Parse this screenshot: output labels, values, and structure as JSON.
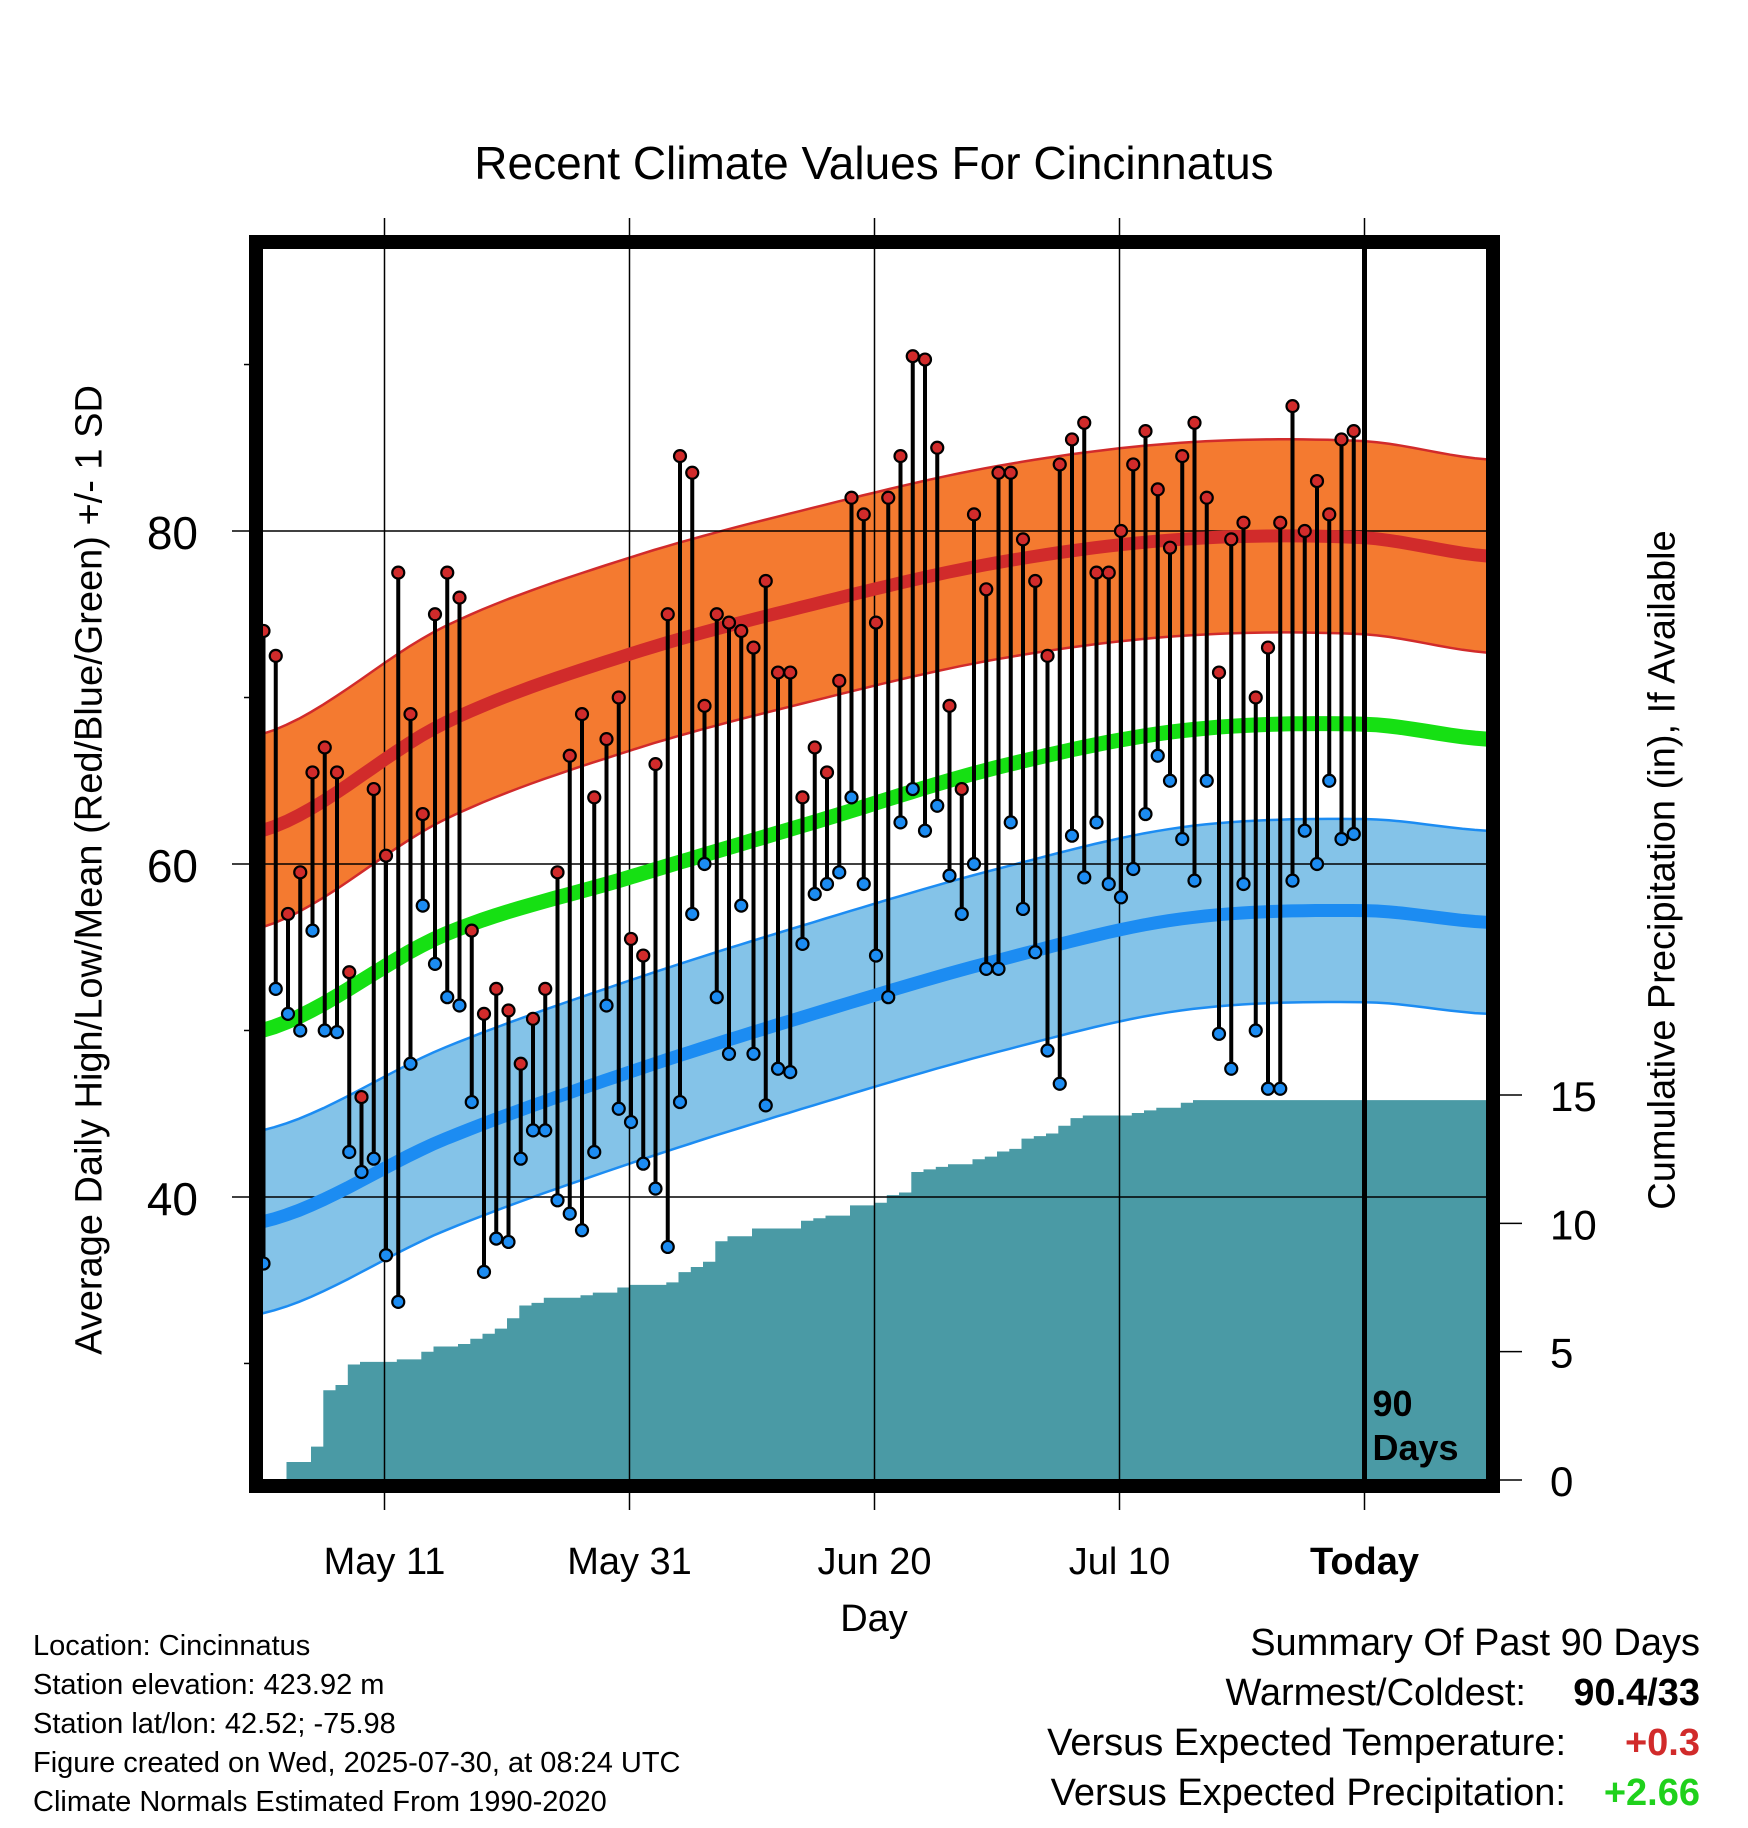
{
  "colors": {
    "high_band": "#f47a30",
    "high_line": "#d12b2b",
    "low_band": "#84c3e8",
    "low_line": "#1c8cf2",
    "mean_line": "#16e013",
    "precip_fill": "#4a9aa5",
    "high_dot": "#d12b2b",
    "low_dot": "#1c8cf2",
    "warm_value": "#d12b2b",
    "precip_value": "#1fd11c"
  },
  "chart_data": {
    "type": "line",
    "title": "Recent Climate Values For Cincinnatus",
    "xlabel": "Day",
    "ylabel_left": "Average Daily High/Low/Mean (Red/Blue/Green) +/- 1 SD",
    "ylabel_right": "Cumulative Precipitation (in), If Available",
    "x_ticks": [
      "May 11",
      "May 31",
      "Jun 20",
      "Jul 10",
      "Today"
    ],
    "x_range_days": [
      -90,
      10
    ],
    "x_tick_days": [
      -80,
      -60,
      -40,
      -20,
      0
    ],
    "y_left_range": [
      23,
      97
    ],
    "y_left_ticks": [
      40,
      60,
      80
    ],
    "y_left_minor_ticks": [
      30,
      50,
      70,
      90
    ],
    "y_right_range": [
      0,
      48
    ],
    "y_right_ticks": [
      0,
      5,
      10,
      15
    ],
    "today_marker_label": [
      "90",
      "Days"
    ],
    "normals": {
      "day": [
        -90,
        -75,
        -60,
        -45,
        -30,
        -15,
        0,
        10
      ],
      "mean_high": [
        62,
        68.5,
        72.6,
        75.6,
        78.1,
        79.5,
        79.6,
        78.5
      ],
      "high_sd": [
        5.8,
        5.8,
        5.8,
        5.8,
        5.8,
        5.8,
        5.8,
        5.8
      ],
      "mean": [
        50,
        55.8,
        59.2,
        62.5,
        65.8,
        68.0,
        68.4,
        67.5
      ],
      "mean_low": [
        38.5,
        43.5,
        47.5,
        51.0,
        54.2,
        56.7,
        57.2,
        56.5
      ],
      "low_sd": [
        5.5,
        5.5,
        5.5,
        5.5,
        5.5,
        5.5,
        5.5,
        5.5
      ]
    },
    "daily": {
      "day": [
        -90,
        -89,
        -88,
        -87,
        -86,
        -85,
        -84,
        -83,
        -82,
        -81,
        -80,
        -79,
        -78,
        -77,
        -76,
        -75,
        -74,
        -73,
        -72,
        -71,
        -70,
        -69,
        -68,
        -67,
        -66,
        -65,
        -64,
        -63,
        -62,
        -61,
        -60,
        -59,
        -58,
        -57,
        -56,
        -55,
        -54,
        -53,
        -52,
        -51,
        -50,
        -49,
        -48,
        -47,
        -46,
        -45,
        -44,
        -43,
        -42,
        -41,
        -40,
        -39,
        -38,
        -37,
        -36,
        -35,
        -34,
        -33,
        -32,
        -31,
        -30,
        -29,
        -28,
        -27,
        -26,
        -25,
        -24,
        -23,
        -22,
        -21,
        -20,
        -19,
        -18,
        -17,
        -16,
        -15,
        -14,
        -13,
        -12,
        -11,
        -10,
        -9,
        -8,
        -7,
        -6,
        -5,
        -4,
        -3,
        -2,
        -1
      ],
      "high": [
        74,
        72.5,
        57,
        59.5,
        65.5,
        67,
        65.5,
        53.5,
        46,
        64.5,
        60.5,
        77.5,
        69,
        63,
        75,
        77.5,
        76,
        56,
        51,
        52.5,
        51.2,
        48,
        50.7,
        52.5,
        59.5,
        66.5,
        69,
        64,
        67.5,
        70,
        55.5,
        54.5,
        66,
        75,
        84.5,
        83.5,
        69.5,
        75,
        74.5,
        74,
        73,
        77,
        71.5,
        71.5,
        64,
        67,
        65.5,
        71,
        82,
        81,
        74.5,
        82,
        84.5,
        90.5,
        90.3,
        85,
        69.5,
        64.5,
        81,
        76.5,
        83.5,
        83.5,
        79.5,
        77,
        72.5,
        84,
        85.5,
        86.5,
        77.5,
        77.5,
        80,
        84,
        86,
        82.5,
        79,
        84.5,
        86.5,
        82,
        71.5,
        79.5,
        80.5,
        70,
        73,
        80.5,
        87.5,
        80,
        83,
        81,
        85.5,
        86
      ],
      "low": [
        36,
        52.5,
        51,
        50,
        56,
        50,
        49.9,
        42.7,
        41.5,
        42.3,
        36.5,
        33.7,
        48,
        57.5,
        54,
        52,
        51.5,
        45.7,
        35.5,
        37.5,
        37.3,
        42.3,
        44,
        44,
        39.8,
        39,
        38,
        42.7,
        51.5,
        45.3,
        44.5,
        42,
        40.5,
        37,
        45.7,
        57,
        60,
        52,
        48.6,
        57.5,
        48.6,
        45.5,
        47.7,
        47.5,
        55.2,
        58.2,
        58.8,
        59.5,
        64,
        58.8,
        54.5,
        52,
        62.5,
        64.5,
        62,
        63.5,
        59.3,
        57,
        60,
        53.7,
        53.7,
        62.5,
        57.3,
        54.7,
        48.8,
        46.8,
        61.7,
        59.2,
        62.5,
        58.8,
        58,
        59.7,
        63,
        66.5,
        65,
        61.5,
        59,
        65,
        49.8,
        47.7,
        58.8,
        50,
        46.5,
        46.5,
        59,
        62,
        60,
        65,
        61.5,
        61.8
      ]
    },
    "precip": {
      "day": [
        -89.5,
        -88,
        -86,
        -85,
        -84,
        -83,
        -82,
        -81,
        -80,
        -79,
        -78,
        -77,
        -76,
        -75,
        -74,
        -73,
        -72,
        -71,
        -70,
        -69,
        -68,
        -67,
        -66,
        -65,
        -64,
        -63,
        -62,
        -61,
        -60,
        -59,
        -58,
        -57,
        -56,
        -55,
        -54,
        -53,
        -52,
        -51,
        -50,
        -49,
        -48,
        -47,
        -46,
        -45,
        -44,
        -43,
        -42,
        -41,
        -40,
        -39,
        -38,
        -37,
        -36,
        -35,
        -34,
        -33,
        -32,
        -31,
        -30,
        -29,
        -28,
        -27,
        -26,
        -25,
        -24,
        -23,
        -22,
        -21,
        -20,
        -19,
        -18,
        -17,
        -16,
        -15,
        -14,
        -13,
        -12,
        -11,
        -10,
        -9,
        -8,
        -7,
        -6,
        -5,
        -4,
        -3,
        -2,
        -1,
        0,
        1,
        2,
        3,
        4,
        5,
        6,
        7,
        8,
        9,
        10
      ],
      "value": [
        0,
        0.7,
        1.3,
        3.5,
        3.7,
        4.5,
        4.6,
        4.6,
        4.6,
        4.7,
        4.7,
        5.0,
        5.2,
        5.2,
        5.3,
        5.5,
        5.7,
        5.9,
        6.3,
        6.8,
        6.9,
        7.1,
        7.1,
        7.1,
        7.2,
        7.3,
        7.3,
        7.5,
        7.6,
        7.6,
        7.6,
        7.7,
        8.1,
        8.3,
        8.5,
        9.3,
        9.5,
        9.5,
        9.8,
        9.8,
        9.8,
        9.8,
        10.1,
        10.2,
        10.3,
        10.3,
        10.7,
        10.7,
        10.8,
        11.1,
        11.2,
        12.0,
        12.1,
        12.2,
        12.3,
        12.3,
        12.5,
        12.6,
        12.8,
        12.9,
        13.3,
        13.4,
        13.5,
        13.8,
        14.1,
        14.2,
        14.2,
        14.2,
        14.2,
        14.3,
        14.4,
        14.5,
        14.5,
        14.7,
        14.8,
        14.8,
        14.8,
        14.8,
        14.8,
        14.8,
        14.8,
        14.8,
        14.8,
        14.8,
        14.8,
        14.8,
        14.8,
        14.8,
        14.8,
        14.8,
        14.8,
        14.8,
        14.8,
        14.8,
        14.8,
        14.8,
        14.8,
        14.8,
        14.8
      ]
    }
  },
  "info": {
    "location": "Location: Cincinnatus",
    "elevation": "Station elevation: 423.92 m",
    "latlon": "Station lat/lon: 42.52; -75.98",
    "created": "Figure created on Wed, 2025-07-30, at 08:24 UTC",
    "normals": "Climate Normals Estimated From 1990-2020"
  },
  "summary": {
    "heading": "Summary Of Past 90 Days",
    "warm_label": "Warmest/Coldest:",
    "warm_value": "90.4/33",
    "temp_label": "Versus Expected Temperature:",
    "temp_value": "+0.3",
    "precip_label": "Versus Expected Precipitation:",
    "precip_value": "+2.66"
  }
}
